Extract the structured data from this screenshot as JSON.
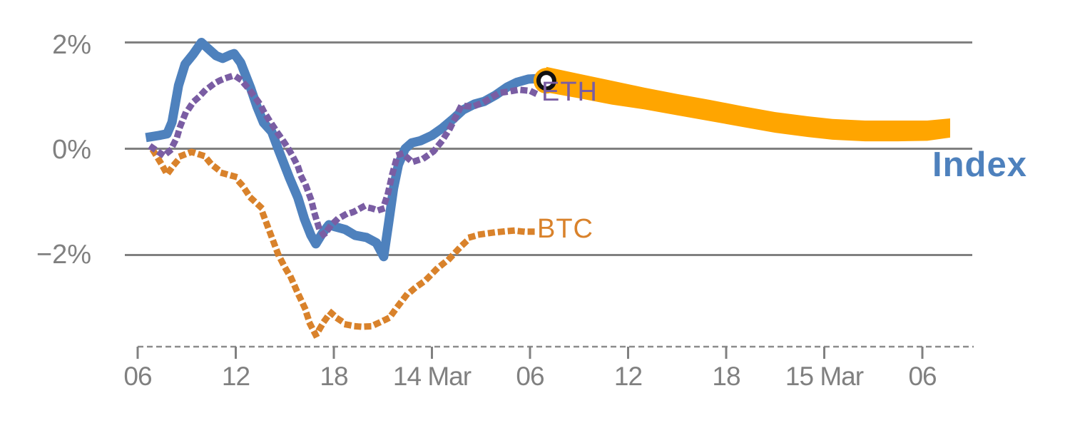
{
  "chart_data": {
    "type": "line",
    "title": "",
    "xlabel": "",
    "ylabel": "",
    "grid": "horizontal",
    "ylim": [
      -3.7,
      2.8
    ],
    "x_unit": "hours since 13 Mar 06:00",
    "y_ticks": [
      {
        "value": 2,
        "label": "2%"
      },
      {
        "value": 0,
        "label": "0%"
      },
      {
        "value": -2,
        "label": "−2%"
      }
    ],
    "x_ticks": [
      {
        "t": 0,
        "label": "06"
      },
      {
        "t": 6,
        "label": "12"
      },
      {
        "t": 12,
        "label": "18"
      },
      {
        "t": 18,
        "label": "14 Mar"
      },
      {
        "t": 24,
        "label": "06"
      },
      {
        "t": 30,
        "label": "12"
      },
      {
        "t": 36,
        "label": "18"
      },
      {
        "t": 42,
        "label": "15 Mar"
      },
      {
        "t": 48,
        "label": "06"
      }
    ],
    "colors": {
      "grid": "#808080",
      "axis": "#8C8C8C",
      "tick_labels": "#808080",
      "index": "#4E81BD",
      "eth": "#7A5DA3",
      "btc": "#D9822B",
      "band": "#FFA500",
      "marker_ring": "#111111",
      "marker_center": "#ffffff"
    },
    "series": [
      {
        "name": "Index",
        "style": "solid",
        "color": "#4E81BD",
        "points": [
          [
            0.5,
            0.21
          ],
          [
            1.3,
            0.25
          ],
          [
            1.8,
            0.28
          ],
          [
            2.1,
            0.5
          ],
          [
            2.5,
            1.19
          ],
          [
            2.9,
            1.59
          ],
          [
            3.4,
            1.78
          ],
          [
            3.9,
            2.0
          ],
          [
            4.4,
            1.86
          ],
          [
            4.8,
            1.75
          ],
          [
            5.2,
            1.7
          ],
          [
            5.7,
            1.77
          ],
          [
            5.9,
            1.79
          ],
          [
            6.3,
            1.62
          ],
          [
            6.9,
            1.15
          ],
          [
            7.3,
            0.79
          ],
          [
            7.7,
            0.49
          ],
          [
            8.2,
            0.32
          ],
          [
            8.6,
            -0.01
          ],
          [
            9.3,
            -0.56
          ],
          [
            9.8,
            -0.92
          ],
          [
            10.2,
            -1.32
          ],
          [
            10.6,
            -1.63
          ],
          [
            10.9,
            -1.79
          ],
          [
            11.3,
            -1.59
          ],
          [
            11.7,
            -1.43
          ],
          [
            12.1,
            -1.47
          ],
          [
            12.7,
            -1.52
          ],
          [
            13.3,
            -1.63
          ],
          [
            14.0,
            -1.67
          ],
          [
            14.6,
            -1.77
          ],
          [
            15.05,
            -2.03
          ],
          [
            15.35,
            -1.4
          ],
          [
            15.65,
            -0.75
          ],
          [
            15.95,
            -0.3
          ],
          [
            16.36,
            0.0
          ],
          [
            16.76,
            0.11
          ],
          [
            17.3,
            0.15
          ],
          [
            18.0,
            0.25
          ],
          [
            18.6,
            0.38
          ],
          [
            19.3,
            0.56
          ],
          [
            19.9,
            0.73
          ],
          [
            20.6,
            0.84
          ],
          [
            21.2,
            0.89
          ],
          [
            21.9,
            1.01
          ],
          [
            22.6,
            1.16
          ],
          [
            23.2,
            1.25
          ],
          [
            23.9,
            1.31
          ],
          [
            24.5,
            1.32
          ]
        ]
      },
      {
        "name": "ETH",
        "style": "dotted",
        "color": "#7A5DA3",
        "points": [
          [
            0.9,
            0.02
          ],
          [
            1.6,
            -0.13
          ],
          [
            2.0,
            -0.03
          ],
          [
            2.4,
            0.21
          ],
          [
            2.6,
            0.42
          ],
          [
            2.9,
            0.65
          ],
          [
            3.1,
            0.74
          ],
          [
            3.4,
            0.88
          ],
          [
            3.7,
            0.96
          ],
          [
            4.1,
            1.09
          ],
          [
            4.4,
            1.16
          ],
          [
            4.7,
            1.23
          ],
          [
            5.0,
            1.28
          ],
          [
            5.3,
            1.32
          ],
          [
            5.6,
            1.35
          ],
          [
            5.9,
            1.36
          ],
          [
            6.1,
            1.34
          ],
          [
            6.3,
            1.3
          ],
          [
            6.5,
            1.23
          ],
          [
            6.7,
            1.16
          ],
          [
            6.9,
            1.08
          ],
          [
            7.2,
            0.96
          ],
          [
            7.5,
            0.83
          ],
          [
            7.7,
            0.71
          ],
          [
            8.0,
            0.56
          ],
          [
            8.3,
            0.42
          ],
          [
            8.6,
            0.28
          ],
          [
            8.9,
            0.15
          ],
          [
            9.2,
            0.01
          ],
          [
            9.5,
            -0.15
          ],
          [
            9.8,
            -0.33
          ],
          [
            10.0,
            -0.52
          ],
          [
            10.3,
            -0.7
          ],
          [
            10.6,
            -0.95
          ],
          [
            10.85,
            -1.25
          ],
          [
            11.1,
            -1.5
          ],
          [
            11.4,
            -1.63
          ],
          [
            11.8,
            -1.45
          ],
          [
            12.2,
            -1.33
          ],
          [
            12.7,
            -1.24
          ],
          [
            13.2,
            -1.19
          ],
          [
            13.8,
            -1.09
          ],
          [
            14.3,
            -1.12
          ],
          [
            14.7,
            -1.16
          ],
          [
            15.0,
            -1.13
          ],
          [
            15.3,
            -0.85
          ],
          [
            15.6,
            -0.45
          ],
          [
            15.9,
            -0.12
          ],
          [
            16.2,
            -0.09
          ],
          [
            16.8,
            -0.25
          ],
          [
            17.5,
            -0.18
          ],
          [
            18.1,
            -0.05
          ],
          [
            18.6,
            0.14
          ],
          [
            19.1,
            0.38
          ],
          [
            19.8,
            0.81
          ],
          [
            20.5,
            0.79
          ],
          [
            21.2,
            0.88
          ],
          [
            22.1,
            1.05
          ],
          [
            22.8,
            1.08
          ],
          [
            23.3,
            1.11
          ],
          [
            24.0,
            1.09
          ],
          [
            24.4,
            1.03
          ]
        ]
      },
      {
        "name": "BTC",
        "style": "dotted",
        "color": "#D9822B",
        "points": [
          [
            1.0,
            -0.06
          ],
          [
            1.4,
            -0.26
          ],
          [
            1.8,
            -0.48
          ],
          [
            2.2,
            -0.31
          ],
          [
            2.7,
            -0.13
          ],
          [
            3.3,
            -0.06
          ],
          [
            4.1,
            -0.14
          ],
          [
            4.5,
            -0.29
          ],
          [
            5.2,
            -0.46
          ],
          [
            5.9,
            -0.52
          ],
          [
            6.4,
            -0.69
          ],
          [
            6.9,
            -0.92
          ],
          [
            7.5,
            -1.09
          ],
          [
            8.0,
            -1.5
          ],
          [
            8.6,
            -1.99
          ],
          [
            9.0,
            -2.23
          ],
          [
            9.4,
            -2.44
          ],
          [
            9.8,
            -2.72
          ],
          [
            10.2,
            -2.98
          ],
          [
            10.55,
            -3.3
          ],
          [
            10.9,
            -3.51
          ],
          [
            11.4,
            -3.25
          ],
          [
            11.8,
            -3.08
          ],
          [
            12.3,
            -3.21
          ],
          [
            12.8,
            -3.31
          ],
          [
            13.3,
            -3.34
          ],
          [
            13.7,
            -3.35
          ],
          [
            14.3,
            -3.34
          ],
          [
            15.0,
            -3.24
          ],
          [
            15.4,
            -3.18
          ],
          [
            15.9,
            -2.97
          ],
          [
            16.4,
            -2.77
          ],
          [
            17.0,
            -2.61
          ],
          [
            17.6,
            -2.48
          ],
          [
            18.3,
            -2.26
          ],
          [
            19.1,
            -2.06
          ],
          [
            19.8,
            -1.83
          ],
          [
            20.4,
            -1.66
          ],
          [
            21.0,
            -1.61
          ],
          [
            21.7,
            -1.58
          ],
          [
            22.3,
            -1.56
          ],
          [
            23.0,
            -1.54
          ],
          [
            23.6,
            -1.56
          ],
          [
            24.4,
            -1.56
          ]
        ]
      }
    ],
    "forecast_band": {
      "series": "Index",
      "color": "#FFA500",
      "points_lo_hi": [
        [
          25.0,
          1.06,
          1.54
        ],
        [
          27,
          0.95,
          1.41
        ],
        [
          29,
          0.83,
          1.28
        ],
        [
          31,
          0.74,
          1.15
        ],
        [
          33,
          0.63,
          1.03
        ],
        [
          35,
          0.52,
          0.92
        ],
        [
          37,
          0.41,
          0.8
        ],
        [
          39,
          0.3,
          0.69
        ],
        [
          41,
          0.22,
          0.61
        ],
        [
          42.5,
          0.17,
          0.56
        ],
        [
          44.5,
          0.14,
          0.53
        ],
        [
          46.5,
          0.14,
          0.53
        ],
        [
          48.3,
          0.15,
          0.53
        ],
        [
          49.7,
          0.21,
          0.57
        ]
      ]
    },
    "marker": {
      "t": 25.0,
      "value": 1.28,
      "type": "open-circle"
    },
    "labels": {
      "index": "Index",
      "eth": "ETH",
      "btc": "BTC"
    }
  }
}
